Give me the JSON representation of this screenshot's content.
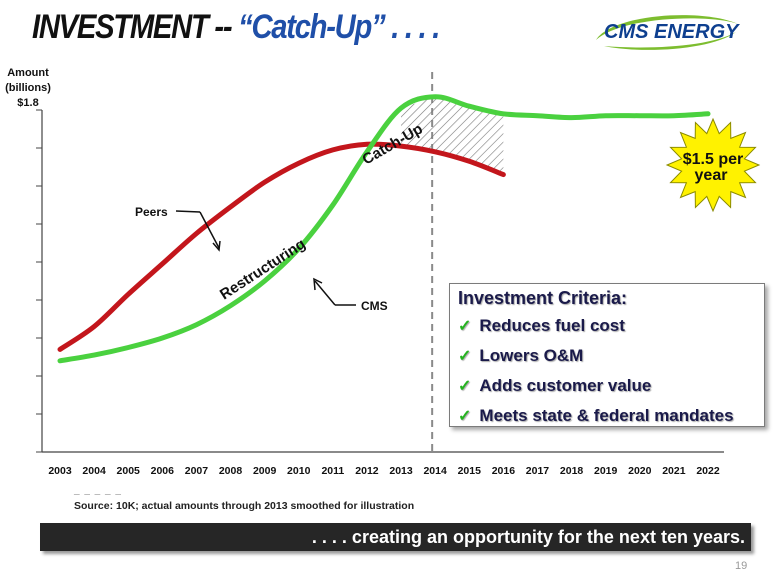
{
  "title": {
    "main": "INVESTMENT --",
    "quote": "“Catch-Up” . . . ."
  },
  "logo": {
    "text": "CMS ENERGY",
    "colors": {
      "swoosh": "#7dbd2f",
      "text": "#0e3f8f"
    }
  },
  "y_axis": {
    "line1": "Amount",
    "line2": "(billions)",
    "top_value": "$1.8"
  },
  "chart_data": {
    "type": "line",
    "title": "",
    "ylabel": "Amount (billions)",
    "y_top_label": "$1.8",
    "ylim": [
      0,
      1.8
    ],
    "categories": [
      "2003",
      "2004",
      "2005",
      "2006",
      "2007",
      "2008",
      "2009",
      "2010",
      "2011",
      "2012",
      "2013",
      "2014",
      "2015",
      "2016",
      "2017",
      "2018",
      "2019",
      "2020",
      "2021",
      "2022"
    ],
    "divider_year": "2014",
    "series": [
      {
        "name": "Peers",
        "color": "#c3161c",
        "points": [
          [
            "2003",
            0.54
          ],
          [
            "2004",
            0.66
          ],
          [
            "2005",
            0.83
          ],
          [
            "2006",
            0.99
          ],
          [
            "2007",
            1.15
          ],
          [
            "2008",
            1.29
          ],
          [
            "2009",
            1.42
          ],
          [
            "2010",
            1.52
          ],
          [
            "2011",
            1.59
          ],
          [
            "2012",
            1.62
          ],
          [
            "2013",
            1.61
          ],
          [
            "2014",
            1.58
          ],
          [
            "2015",
            1.53
          ],
          [
            "2016",
            1.46
          ]
        ]
      },
      {
        "name": "CMS",
        "color": "#4ad13f",
        "points": [
          [
            "2003",
            0.48
          ],
          [
            "2004",
            0.51
          ],
          [
            "2005",
            0.55
          ],
          [
            "2006",
            0.6
          ],
          [
            "2007",
            0.67
          ],
          [
            "2008",
            0.77
          ],
          [
            "2009",
            0.9
          ],
          [
            "2010",
            1.07
          ],
          [
            "2011",
            1.3
          ],
          [
            "2012",
            1.58
          ],
          [
            "2013",
            1.81
          ],
          [
            "2014",
            1.87
          ],
          [
            "2015",
            1.82
          ],
          [
            "2016",
            1.78
          ],
          [
            "2017",
            1.77
          ],
          [
            "2018",
            1.76
          ],
          [
            "2019",
            1.77
          ],
          [
            "2020",
            1.77
          ],
          [
            "2021",
            1.77
          ],
          [
            "2022",
            1.78
          ]
        ]
      }
    ],
    "annotations": {
      "peers": "Peers",
      "cms": "CMS",
      "restructuring": "Restructuring",
      "catch_up": "Catch-Up",
      "burst": "$1.5 per year"
    },
    "grid": false
  },
  "criteria": {
    "title": "Investment Criteria:",
    "items": [
      "Reduces fuel cost",
      "Lowers O&M",
      "Adds customer value",
      "Meets state & federal mandates"
    ]
  },
  "source_dashes": "_ _ _ _ _",
  "source": "Source:  10K; actual amounts through 2013 smoothed for illustration",
  "banner": ". . . . creating an opportunity for the next ten years.",
  "page_number": "19",
  "colors": {
    "peers": "#c3161c",
    "cms": "#4ad13f",
    "burst": "#fff200",
    "banner_bg": "#262626"
  }
}
